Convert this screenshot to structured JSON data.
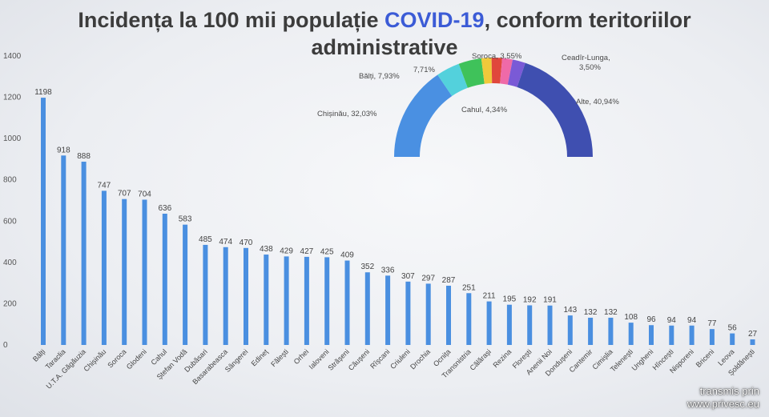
{
  "title": {
    "before": "Incidența la 100 mii populație ",
    "accent": "COVID-19",
    "after": ", conform teritoriilor",
    "line2": "administrative"
  },
  "colors": {
    "bar": "#4a8fe0",
    "title_accent": "#3b5bd6",
    "title": "#3c3c3c"
  },
  "chart_data": [
    {
      "type": "bar",
      "ylim": [
        0,
        1400
      ],
      "yticks": [
        0,
        200,
        400,
        600,
        800,
        1000,
        1200,
        1400
      ],
      "categories": [
        "Bălți",
        "Taraclia",
        "U.T.A. Găgăuzia",
        "Chișinău",
        "Soroca",
        "Glodeni",
        "Cahul",
        "Ștefan Vodă",
        "Dubăsari",
        "Basarabeasca",
        "Sângerei",
        "Edineț",
        "Fălești",
        "Orhei",
        "Ialoveni",
        "Strășeni",
        "Căușeni",
        "Rîșcani",
        "Criuleni",
        "Drochia",
        "Ocnița",
        "Transnistria",
        "Călărași",
        "Rezina",
        "Florești",
        "Anenii Noi",
        "Dondușeni",
        "Cantemir",
        "Cimișlia",
        "Telenești",
        "Ungheni",
        "Hîncești",
        "Nisporeni",
        "Briceni",
        "Leova",
        "Șoldănești"
      ],
      "values": [
        1198,
        918,
        888,
        747,
        707,
        704,
        636,
        583,
        485,
        474,
        470,
        438,
        429,
        427,
        425,
        409,
        352,
        336,
        307,
        297,
        287,
        251,
        211,
        195,
        192,
        191,
        143,
        132,
        132,
        108,
        96,
        94,
        94,
        77,
        56,
        27
      ],
      "grid": false,
      "legend": "none"
    },
    {
      "type": "pie",
      "variant": "half-donut",
      "slices": [
        {
          "label": "Chișinău",
          "value": "32,03%",
          "share": 32.03,
          "color": "#4a90e2"
        },
        {
          "label": "Bălți",
          "value": "7,93%",
          "share": 7.93,
          "color": "#53d1dc"
        },
        {
          "label": "",
          "value": "7,71%",
          "share": 7.71,
          "color": "#3fc25a"
        },
        {
          "label": "",
          "value": "",
          "share": 3.4,
          "color": "#f0c93b"
        },
        {
          "label": "Soroca",
          "value": "3,55%",
          "share": 3.55,
          "color": "#e0473c"
        },
        {
          "label": "Ceadîr-Lunga",
          "value": "3,50%",
          "share": 3.5,
          "color": "#ef6aa8"
        },
        {
          "label": "Cahul",
          "value": "4,34%",
          "share": 4.34,
          "color": "#7a5ad6"
        },
        {
          "label": "Alte",
          "value": "40,94%",
          "share": 40.94,
          "color": "#3f4fb0"
        }
      ]
    }
  ],
  "watermark": {
    "line1": "transmis prin",
    "line2": "www.privesc.eu"
  }
}
